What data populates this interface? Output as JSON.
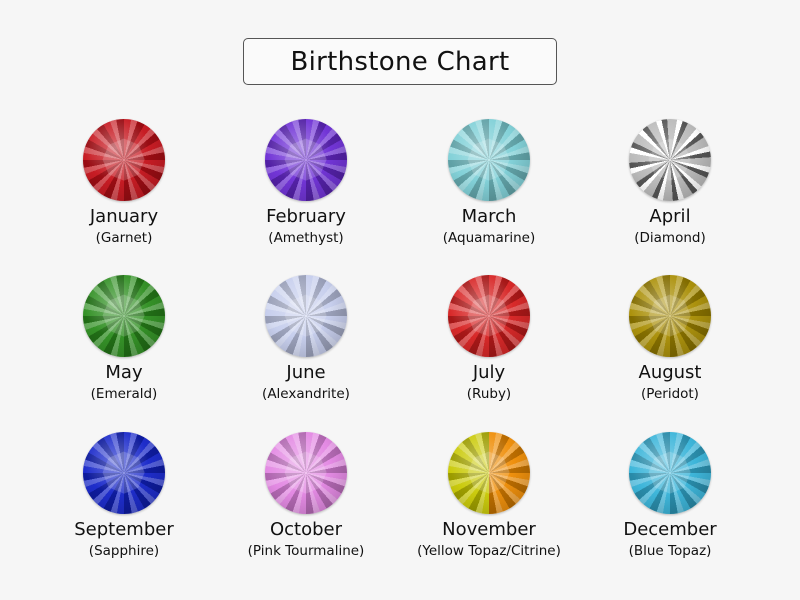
{
  "title": "Birthstone Chart",
  "gems": [
    {
      "month": "January",
      "stone": "(Garnet)",
      "color": "#c41018",
      "color2": "#c41018"
    },
    {
      "month": "February",
      "stone": "(Amethyst)",
      "color": "#6a2ad4",
      "color2": "#6a2ad4"
    },
    {
      "month": "March",
      "stone": "(Aquamarine)",
      "color": "#7ccfd6",
      "color2": "#7ccfd6"
    },
    {
      "month": "April",
      "stone": "(Diamond)",
      "color": "#d4d4d4",
      "color2": "#d4d4d4"
    },
    {
      "month": "May",
      "stone": "(Emerald)",
      "color": "#2a8c1c",
      "color2": "#2a8c1c"
    },
    {
      "month": "June",
      "stone": "(Alexandrite)",
      "color": "#c4ccec",
      "color2": "#c4ccec"
    },
    {
      "month": "July",
      "stone": "(Ruby)",
      "color": "#d61e1e",
      "color2": "#d61e1e"
    },
    {
      "month": "August",
      "stone": "(Peridot)",
      "color": "#a88c00",
      "color2": "#a88c00"
    },
    {
      "month": "September",
      "stone": "(Sapphire)",
      "color": "#1222c8",
      "color2": "#1222c8"
    },
    {
      "month": "October",
      "stone": "(Pink Tourmaline)",
      "color": "#e284e2",
      "color2": "#e284e2"
    },
    {
      "month": "November",
      "stone": "(Yellow Topaz/Citrine)",
      "color": "#c8c800",
      "color2": "#ee8a00"
    },
    {
      "month": "December",
      "stone": "(Blue Topaz)",
      "color": "#34b2d8",
      "color2": "#34b2d8"
    }
  ]
}
